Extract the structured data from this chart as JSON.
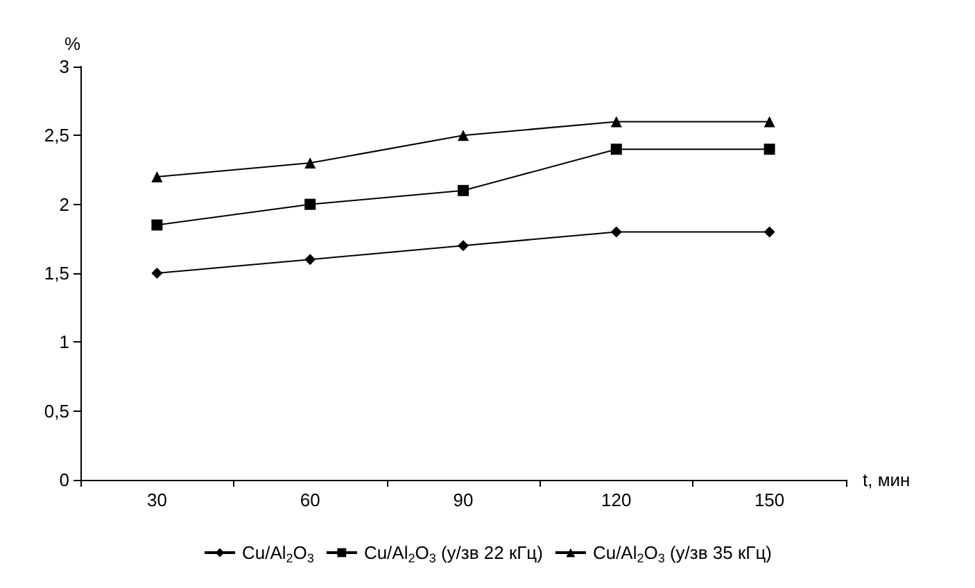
{
  "chart_data": {
    "type": "line",
    "xlabel": "t, мин",
    "ylabel": "%",
    "categories": [
      "30",
      "60",
      "90",
      "120",
      "150"
    ],
    "series": [
      {
        "name": "Cu/Al$_{2}$O$_{3}$",
        "color": "#000000",
        "marker": "diamond",
        "values": [
          1.5,
          1.6,
          1.7,
          1.8,
          1.8
        ]
      },
      {
        "name": "Cu/Al$_{2}$O$_{3}$ (у/зв 22 кГц)",
        "color": "#000000",
        "marker": "square",
        "values": [
          1.85,
          2.0,
          2.1,
          2.4,
          2.4
        ]
      },
      {
        "name": "Cu/Al$_{2}$O$_{3}$ (у/зв 35 кГц)",
        "color": "#000000",
        "marker": "triangle",
        "values": [
          2.2,
          2.3,
          2.5,
          2.6,
          2.6
        ]
      }
    ],
    "ylim": [
      0,
      3
    ],
    "yticks": [
      0,
      {
        "value": 0.5,
        "label": "0,5"
      },
      1,
      {
        "value": 1.5,
        "label": "1,5"
      },
      2,
      {
        "value": 2.5,
        "label": "2,5"
      },
      3
    ],
    "grid": false,
    "legend": "bottom",
    "line_style": "solid"
  }
}
